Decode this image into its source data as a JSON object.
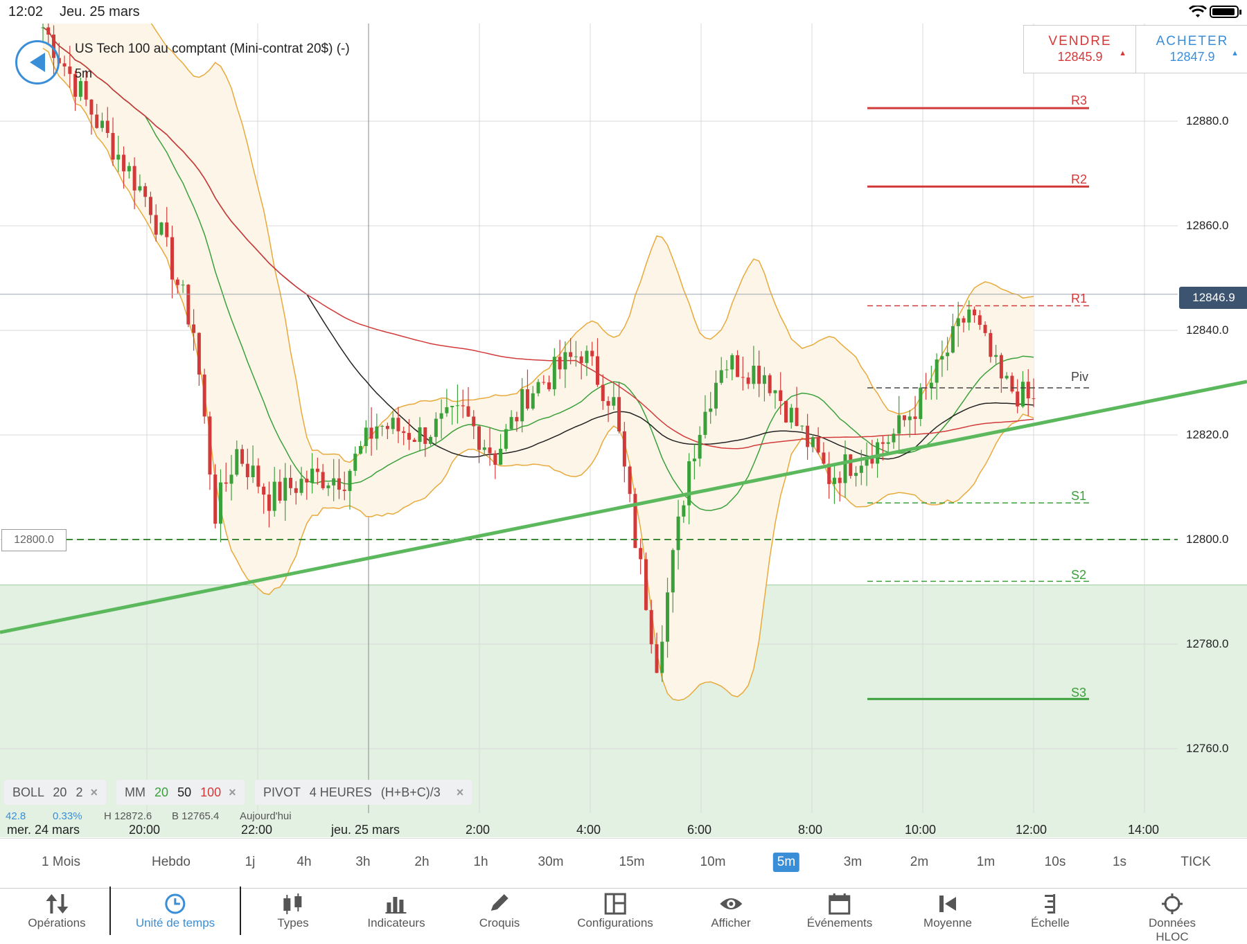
{
  "status": {
    "time": "12:02",
    "date": "Jeu. 25 mars"
  },
  "instrument": {
    "title": "US Tech 100 au comptant (Mini-contrat 20$) (-)",
    "timeframe": "5m"
  },
  "sell": {
    "label": "VENDRE",
    "price": "12845.9",
    "arrow": "▲",
    "color": "#d23a3a"
  },
  "buy": {
    "label": "ACHETER",
    "price": "12847.9",
    "arrow": "▲",
    "color": "#3a8ed8"
  },
  "chart_data": {
    "type": "candlestick",
    "y_ticks": [
      "12880.0",
      "12860.0",
      "12840.0",
      "12820.0",
      "12800.0",
      "12780.0",
      "12760.0"
    ],
    "ylim": [
      12755,
      12896
    ],
    "current_price": "12846.9",
    "order_level": "12800.0",
    "x_ticks": [
      "20:00",
      "22:00",
      "2:00",
      "4:00",
      "6:00",
      "8:00",
      "10:00",
      "12:00",
      "14:00"
    ],
    "date_labels": [
      "mer. 24 mars",
      "jeu. 25 mars"
    ],
    "pivots": [
      {
        "name": "R3",
        "value": 12882.5,
        "color": "#d23a3a"
      },
      {
        "name": "R2",
        "value": 12867.5,
        "color": "#d23a3a"
      },
      {
        "name": "R1",
        "value": 12844.7,
        "color": "#d23a3a"
      },
      {
        "name": "Piv",
        "value": 12829.0,
        "color": "#444444"
      },
      {
        "name": "S1",
        "value": 12807.0,
        "color": "#3aa03a"
      },
      {
        "name": "S2",
        "value": 12792.0,
        "color": "#3aa03a"
      },
      {
        "name": "S3",
        "value": 12769.5,
        "color": "#3aa03a"
      }
    ],
    "up_color": "#3aa03a",
    "down_color": "#d23a3a"
  },
  "indicators": {
    "boll": {
      "name": "BOLL",
      "p1": "20",
      "p2": "2"
    },
    "mm": {
      "name": "MM",
      "p1": "20",
      "p2": "50",
      "p3": "100"
    },
    "pivot": {
      "name": "PIVOT",
      "p1": "4 HEURES",
      "p2": "(H+B+C)/3"
    },
    "stats": [
      "42.8",
      "0.33%",
      "H 12872.6",
      "B 12765.4",
      "Aujourd'hui"
    ]
  },
  "timeframes": [
    "1 Mois",
    "Hebdo",
    "1j",
    "4h",
    "3h",
    "2h",
    "1h",
    "30m",
    "15m",
    "10m",
    "5m",
    "3m",
    "2m",
    "1m",
    "10s",
    "1s",
    "TICK"
  ],
  "selected_timeframe": "5m",
  "tools": [
    "Opérations",
    "Unité de temps",
    "Types",
    "Indicateurs",
    "Croquis",
    "Configurations",
    "Afficher",
    "Événements",
    "Moyenne",
    "Échelle",
    "Données HLOC"
  ]
}
